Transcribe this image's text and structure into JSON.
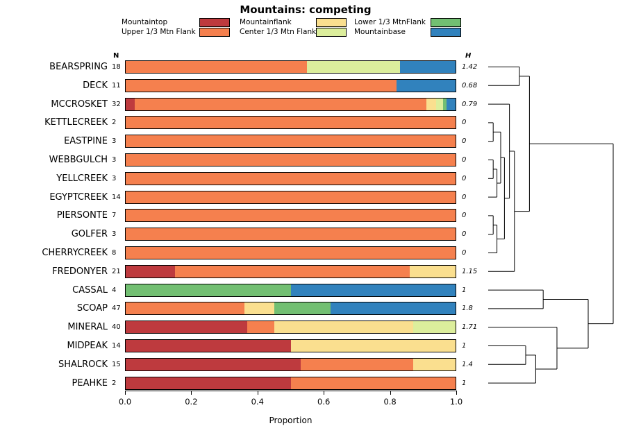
{
  "title": "Mountains: competing",
  "xlabel": "Proportion",
  "columns": {
    "n_header": "N",
    "h_header": "H"
  },
  "chart_data": {
    "type": "bar",
    "stacked": true,
    "orientation": "horizontal",
    "title": "Mountains: competing",
    "xlabel": "Proportion",
    "xlim": [
      0,
      1
    ],
    "xticks": [
      0.0,
      0.2,
      0.4,
      0.6,
      0.8,
      1.0
    ],
    "legend_position": "top",
    "segments": [
      "Mountaintop",
      "Upper 1/3 Mtn Flank",
      "Mountainflank",
      "Center 1/3 Mtn Flank",
      "Lower 1/3 MtnFlank",
      "Mountainbase"
    ],
    "segment_colors": [
      "#BE3A3E",
      "#F5804E",
      "#FADF8F",
      "#DCEE9C",
      "#72BF72",
      "#3182BD"
    ],
    "rows": [
      {
        "site": "BEARSPRING",
        "n": 18,
        "h": "1.42",
        "values": [
          0,
          0.55,
          0,
          0.28,
          0,
          0.17
        ]
      },
      {
        "site": "DECK",
        "n": 11,
        "h": "0.68",
        "values": [
          0,
          0.82,
          0,
          0,
          0,
          0.18
        ]
      },
      {
        "site": "MCCROSKET",
        "n": 32,
        "h": "0.79",
        "values": [
          0.03,
          0.88,
          0.03,
          0.02,
          0.01,
          0.03
        ]
      },
      {
        "site": "KETTLECREEK",
        "n": 2,
        "h": "0",
        "values": [
          0,
          1,
          0,
          0,
          0,
          0
        ]
      },
      {
        "site": "EASTPINE",
        "n": 3,
        "h": "0",
        "values": [
          0,
          1,
          0,
          0,
          0,
          0
        ]
      },
      {
        "site": "WEBBGULCH",
        "n": 3,
        "h": "0",
        "values": [
          0,
          1,
          0,
          0,
          0,
          0
        ]
      },
      {
        "site": "YELLCREEK",
        "n": 3,
        "h": "0",
        "values": [
          0,
          1,
          0,
          0,
          0,
          0
        ]
      },
      {
        "site": "EGYPTCREEK",
        "n": 14,
        "h": "0",
        "values": [
          0,
          1,
          0,
          0,
          0,
          0
        ]
      },
      {
        "site": "PIERSONTE",
        "n": 7,
        "h": "0",
        "values": [
          0,
          1,
          0,
          0,
          0,
          0
        ]
      },
      {
        "site": "GOLFER",
        "n": 3,
        "h": "0",
        "values": [
          0,
          1,
          0,
          0,
          0,
          0
        ]
      },
      {
        "site": "CHERRYCREEK",
        "n": 8,
        "h": "0",
        "values": [
          0,
          1,
          0,
          0,
          0,
          0
        ]
      },
      {
        "site": "FREDONYER",
        "n": 21,
        "h": "1.15",
        "values": [
          0.15,
          0.71,
          0.14,
          0,
          0,
          0
        ]
      },
      {
        "site": "CASSAL",
        "n": 4,
        "h": "1",
        "values": [
          0,
          0,
          0,
          0,
          0.5,
          0.5
        ]
      },
      {
        "site": "SCOAP",
        "n": 47,
        "h": "1.8",
        "values": [
          0,
          0.36,
          0.09,
          0,
          0.17,
          0.38
        ]
      },
      {
        "site": "MINERAL",
        "n": 40,
        "h": "1.71",
        "values": [
          0.37,
          0.08,
          0.42,
          0.13,
          0,
          0
        ]
      },
      {
        "site": "MIDPEAK",
        "n": 14,
        "h": "1",
        "values": [
          0.5,
          0,
          0.5,
          0,
          0,
          0
        ]
      },
      {
        "site": "SHALROCK",
        "n": 15,
        "h": "1.4",
        "values": [
          0.53,
          0.34,
          0.13,
          0,
          0,
          0
        ]
      },
      {
        "site": "PEAHKE",
        "n": 2,
        "h": "1",
        "values": [
          0.5,
          0.5,
          0,
          0,
          0,
          0
        ]
      }
    ],
    "dendrogram": {
      "h": 1.0,
      "c": [
        {
          "h": 0.33,
          "c": [
            {
              "h": 0.25,
              "c": [
                {
                  "leaf": 0
                },
                {
                  "leaf": 1
                }
              ]
            },
            {
              "h": 0.21,
              "c": [
                {
                  "h": 0.17,
                  "c": [
                    {
                      "leaf": 2
                    },
                    {
                      "h": 0.13,
                      "c": [
                        {
                          "h": 0.1,
                          "c": [
                            {
                              "h": 0.04,
                              "c": [
                                {
                                  "leaf": 3
                                },
                                {
                                  "leaf": 4
                                }
                              ]
                            },
                            {
                              "h": 0.07,
                              "c": [
                                {
                                  "h": 0.04,
                                  "c": [
                                    {
                                      "leaf": 5
                                    },
                                    {
                                      "leaf": 6
                                    }
                                  ]
                                },
                                {
                                  "leaf": 7
                                }
                              ]
                            }
                          ]
                        },
                        {
                          "h": 0.07,
                          "c": [
                            {
                              "h": 0.04,
                              "c": [
                                {
                                  "leaf": 8
                                },
                                {
                                  "leaf": 9
                                }
                              ]
                            },
                            {
                              "leaf": 10
                            }
                          ]
                        }
                      ]
                    }
                  ]
                },
                {
                  "leaf": 11
                }
              ]
            }
          ]
        },
        {
          "h": 0.8,
          "c": [
            {
              "h": 0.44,
              "c": [
                {
                  "leaf": 12
                },
                {
                  "leaf": 13
                }
              ]
            },
            {
              "h": 0.55,
              "c": [
                {
                  "leaf": 14
                },
                {
                  "h": 0.38,
                  "c": [
                    {
                      "h": 0.3,
                      "c": [
                        {
                          "leaf": 15
                        },
                        {
                          "leaf": 16
                        }
                      ]
                    },
                    {
                      "leaf": 17
                    }
                  ]
                }
              ]
            }
          ]
        }
      ]
    }
  }
}
